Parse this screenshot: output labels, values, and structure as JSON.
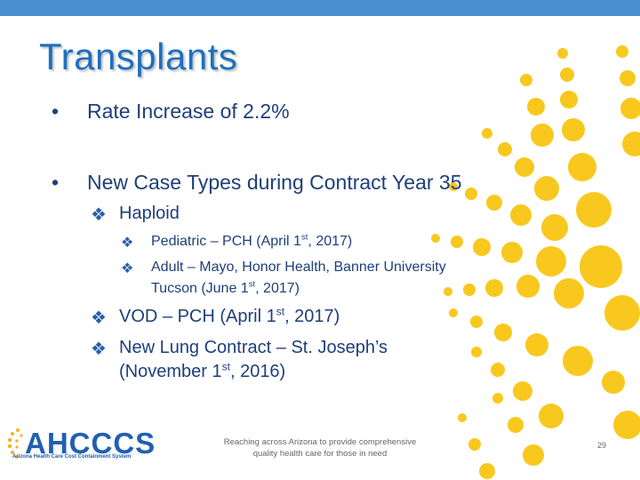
{
  "slide": {
    "title": "Transplants",
    "bullets": {
      "rate": "Rate Increase of 2.2%",
      "new_cases": "New Case Types during Contract Year 35",
      "haploid": "Haploid",
      "pediatric": {
        "pre": "Pediatric – PCH (April 1",
        "sup": "st",
        "post": ", 2017)"
      },
      "adult_line1": "Adult – Mayo, Honor Health, Banner University",
      "adult_line2": {
        "pre": "Tucson (June 1",
        "sup": "st",
        "post": ", 2017)"
      },
      "vod": {
        "pre": "VOD – PCH (April 1",
        "sup": "st",
        "post": ", 2017)"
      },
      "lung_line1": "New Lung Contract – St. Joseph’s",
      "lung_line2": {
        "pre": "(November 1",
        "sup": "st",
        "post": ", 2016)"
      }
    },
    "bullet_symbols": {
      "round": "•",
      "diamond": "❖"
    }
  },
  "footer": {
    "logo_text": "AHCCCS",
    "logo_subtext": "Arizona Health Care Cost Containment System",
    "tagline_line1": "Reaching across Arizona to provide comprehensive",
    "tagline_line2": "quality health care for those in need",
    "page_number": "29"
  },
  "colors": {
    "title": "#1f6fbf",
    "text": "#1f3f7a",
    "sun": "#f9c81e",
    "bar": "#4a8fd0"
  }
}
